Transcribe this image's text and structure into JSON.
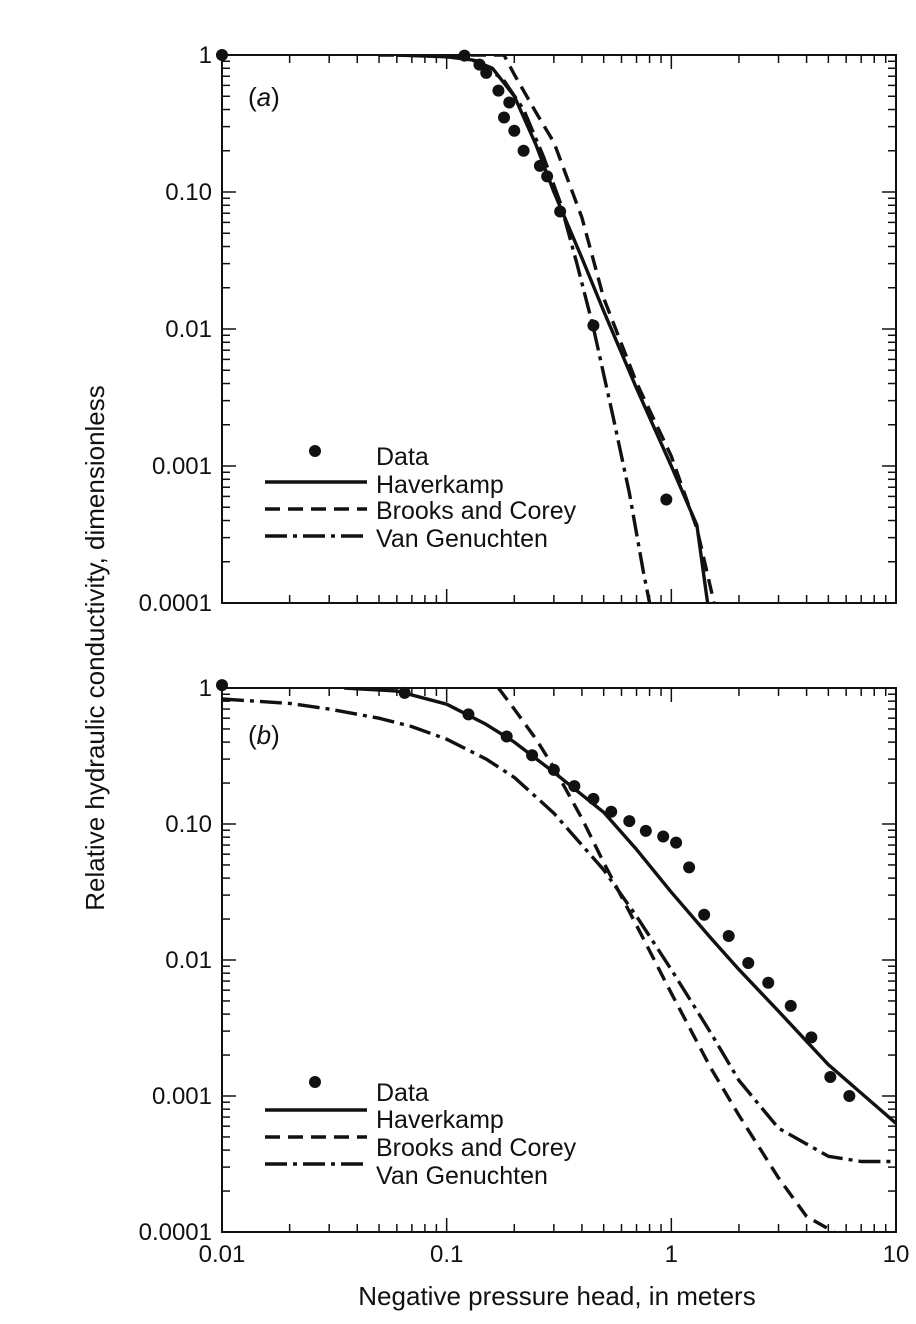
{
  "chart_data": {
    "type": "line",
    "ylabel": "Relative hydraulic conductivity, dimensionless",
    "xlabel": "Negative pressure head, in meters",
    "xscale": "log",
    "yscale": "log",
    "xlim": [
      0.01,
      10
    ],
    "ylim": [
      0.0001,
      1
    ],
    "xtick_labels": [
      "0.01",
      "0.1",
      "1",
      "10"
    ],
    "ytick_labels": [
      "1",
      "0.10",
      "0.01",
      "0.001",
      "0.0001"
    ],
    "panels": [
      {
        "label": "(a)",
        "label_parts": [
          "(",
          "a",
          ")"
        ],
        "legend_position": "bottom-left",
        "legend": [
          "Data",
          "Haverkamp",
          "Brooks and Corey",
          "Van Genuchten"
        ],
        "series": [
          {
            "name": "Data",
            "style": "points",
            "x": [
              0.01,
              0.12,
              0.14,
              0.15,
              0.17,
              0.18,
              0.19,
              0.2,
              0.22,
              0.26,
              0.28,
              0.32,
              0.45,
              0.95
            ],
            "y": [
              1.0,
              0.99,
              0.85,
              0.74,
              0.55,
              0.35,
              0.45,
              0.28,
              0.2,
              0.155,
              0.13,
              0.072,
              0.0106,
              0.00057
            ]
          },
          {
            "name": "Haverkamp",
            "style": "solid",
            "x": [
              0.06,
              0.1,
              0.13,
              0.16,
              0.2,
              0.25,
              0.3,
              0.4,
              0.5,
              0.7,
              1.0,
              1.3,
              1.45
            ],
            "y": [
              1.0,
              0.97,
              0.92,
              0.8,
              0.5,
              0.22,
              0.1,
              0.033,
              0.0135,
              0.0037,
              0.001,
              0.00037,
              0.0001
            ]
          },
          {
            "name": "Brooks and Corey",
            "style": "dashed",
            "x": [
              0.05,
              0.18,
              0.2,
              0.25,
              0.3,
              0.4,
              0.5,
              0.7,
              1.0,
              1.3,
              1.55
            ],
            "y": [
              1.0,
              1.0,
              0.72,
              0.38,
              0.23,
              0.065,
              0.0168,
              0.00406,
              0.00118,
              0.00035,
              0.0001
            ]
          },
          {
            "name": "Van Genuchten",
            "style": "dashdot",
            "x": [
              0.06,
              0.1,
              0.14,
              0.18,
              0.22,
              0.27,
              0.32,
              0.38,
              0.45,
              0.55,
              0.65,
              0.75,
              0.8
            ],
            "y": [
              1.0,
              0.98,
              0.9,
              0.65,
              0.4,
              0.18,
              0.084,
              0.03,
              0.0102,
              0.0023,
              0.00064,
              0.00017,
              0.0001
            ]
          }
        ]
      },
      {
        "label": "(b)",
        "label_parts": [
          "(",
          "b",
          ")"
        ],
        "legend_position": "bottom-left",
        "legend": [
          "Data",
          "Haverkamp",
          "Brooks and Corey",
          "Van Genuchten"
        ],
        "series": [
          {
            "name": "Data",
            "style": "points",
            "x": [
              0.01,
              0.065,
              0.125,
              0.185,
              0.24,
              0.3,
              0.37,
              0.45,
              0.54,
              0.65,
              0.77,
              0.92,
              1.05,
              1.2,
              1.4,
              1.8,
              2.2,
              2.7,
              3.4,
              4.2,
              5.1,
              6.2
            ],
            "y": [
              1.05,
              0.92,
              0.64,
              0.44,
              0.32,
              0.25,
              0.19,
              0.153,
              0.123,
              0.105,
              0.089,
              0.081,
              0.073,
              0.048,
              0.0215,
              0.015,
              0.0095,
              0.0068,
              0.0046,
              0.0027,
              0.00138,
              0.001
            ]
          },
          {
            "name": "Haverkamp",
            "style": "solid",
            "x": [
              0.035,
              0.06,
              0.1,
              0.15,
              0.2,
              0.3,
              0.5,
              0.7,
              1.0,
              1.5,
              2.0,
              3.0,
              5.0,
              7.0,
              10.0
            ],
            "y": [
              1.0,
              0.95,
              0.76,
              0.54,
              0.4,
              0.24,
              0.122,
              0.065,
              0.0315,
              0.0145,
              0.0085,
              0.0042,
              0.0017,
              0.00105,
              0.00063
            ]
          },
          {
            "name": "Brooks and Corey",
            "style": "dashed",
            "x": [
              0.17,
              0.2,
              0.25,
              0.3,
              0.4,
              0.5,
              0.7,
              1.0,
              1.5,
              2.0,
              3.0,
              4.0,
              5.3
            ],
            "y": [
              1.0,
              0.7,
              0.42,
              0.26,
              0.11,
              0.052,
              0.018,
              0.0057,
              0.0016,
              0.00072,
              0.00025,
              0.00013,
              0.0001
            ]
          },
          {
            "name": "Van Genuchten",
            "style": "dashdot",
            "x": [
              0.01,
              0.02,
              0.03,
              0.05,
              0.07,
              0.1,
              0.15,
              0.2,
              0.3,
              0.5,
              0.7,
              1.0,
              1.5,
              2.0,
              3.0,
              5.0,
              7.0,
              10.0
            ],
            "y": [
              0.83,
              0.77,
              0.7,
              0.6,
              0.52,
              0.42,
              0.3,
              0.22,
              0.12,
              0.046,
              0.021,
              0.0085,
              0.0029,
              0.0013,
              0.00058,
              0.00036,
              0.00033,
              0.00033
            ]
          }
        ]
      }
    ]
  }
}
